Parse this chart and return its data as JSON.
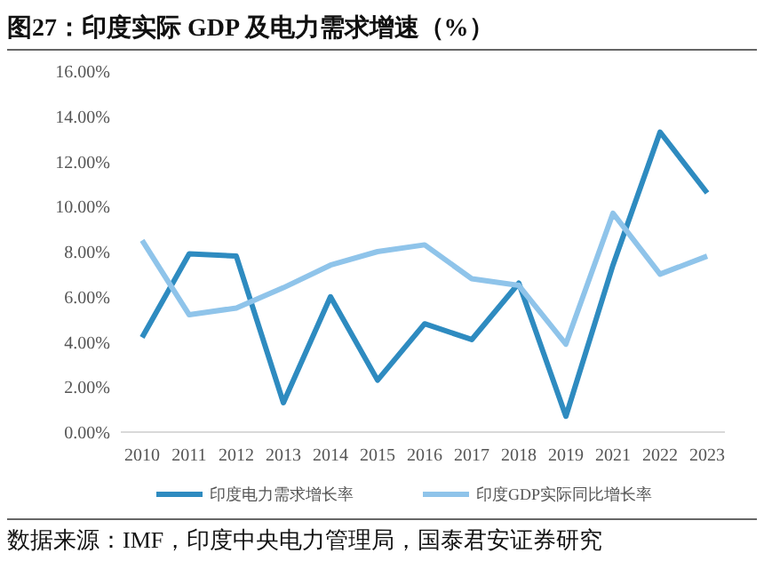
{
  "chart_data": {
    "type": "line",
    "title": "图27：印度实际 GDP 及电力需求增速（%）",
    "annotations": [
      "数据来源：IMF，印度中央电力管理局，国泰君安证券研究"
    ],
    "categories": [
      "2010",
      "2011",
      "2012",
      "2013",
      "2014",
      "2015",
      "2016",
      "2017",
      "2018",
      "2019",
      "2021",
      "2022",
      "2023"
    ],
    "series": [
      {
        "name": "印度电力需求增长率",
        "color": "#2e8bc0",
        "values": [
          4.2,
          7.9,
          7.8,
          1.3,
          6.0,
          2.3,
          4.8,
          4.1,
          6.6,
          0.7,
          7.4,
          13.3,
          10.6
        ]
      },
      {
        "name": "印度GDP实际同比增长率",
        "color": "#8fc4ea",
        "values": [
          8.5,
          5.2,
          5.5,
          6.4,
          7.4,
          8.0,
          8.3,
          6.8,
          6.5,
          3.9,
          9.7,
          7.0,
          7.8
        ]
      }
    ],
    "ylim": [
      0,
      16
    ],
    "yticks": [
      {
        "value": 0,
        "label": "0.00%"
      },
      {
        "value": 2,
        "label": "2.00%"
      },
      {
        "value": 4,
        "label": "4.00%"
      },
      {
        "value": 6,
        "label": "6.00%"
      },
      {
        "value": 8,
        "label": "8.00%"
      },
      {
        "value": 10,
        "label": "10.00%"
      },
      {
        "value": 12,
        "label": "12.00%"
      },
      {
        "value": 14,
        "label": "14.00%"
      },
      {
        "value": 16,
        "label": "16.00%"
      }
    ],
    "grid": false,
    "legend": "bottom",
    "marker": "none",
    "line_style": "solid"
  }
}
